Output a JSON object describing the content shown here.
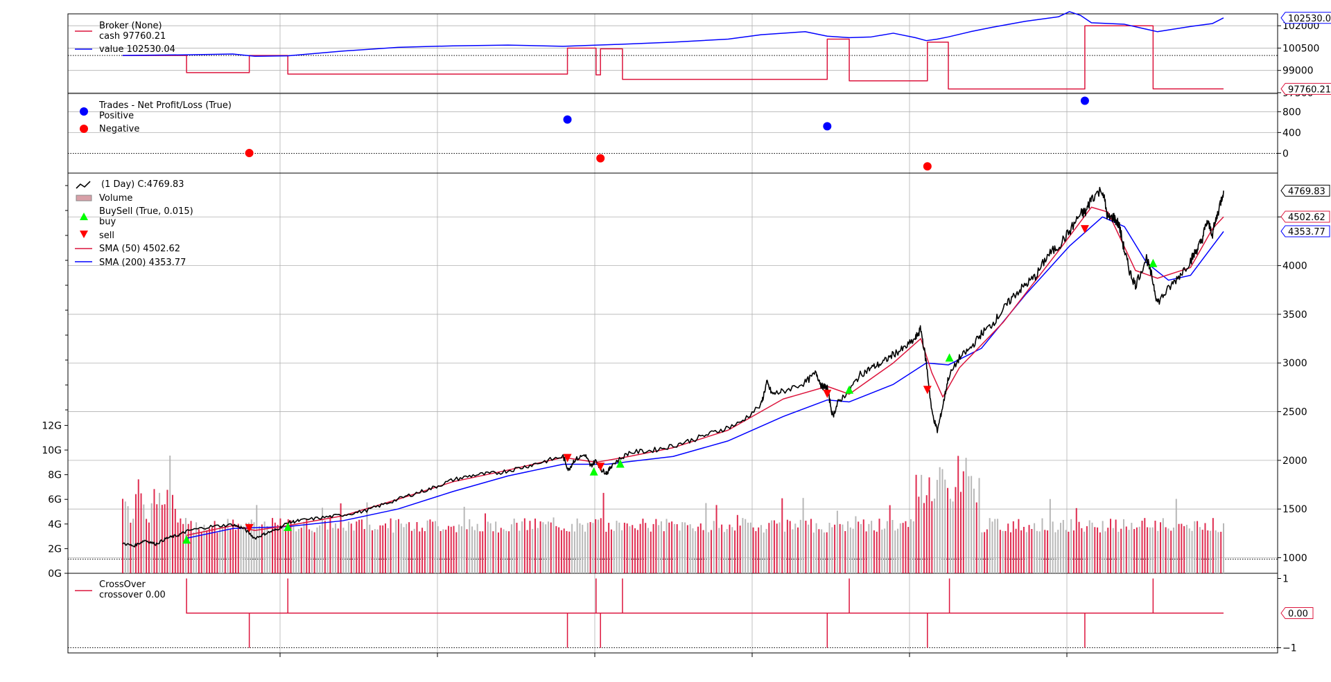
{
  "chart_data": {
    "type": "line",
    "panels": {
      "broker": {
        "legend_title": "Broker (None)",
        "cash_label": "cash 97760.21",
        "value_label": "value 102530.04",
        "y_ticks": [
          "102000",
          "100500",
          "99000",
          "97500"
        ],
        "ylim": [
          97450,
          102800
        ],
        "value_box": "102530.04",
        "cash_box": "97760.21",
        "colors": {
          "value": "#0000ff",
          "cash": "#dc143c"
        },
        "value_series": [
          [
            0.0,
            100000
          ],
          [
            0.06,
            100050
          ],
          [
            0.1,
            100100
          ],
          [
            0.12,
            99950
          ],
          [
            0.15,
            99980
          ],
          [
            0.2,
            100300
          ],
          [
            0.25,
            100550
          ],
          [
            0.3,
            100650
          ],
          [
            0.35,
            100700
          ],
          [
            0.4,
            100620
          ],
          [
            0.45,
            100750
          ],
          [
            0.5,
            100900
          ],
          [
            0.55,
            101100
          ],
          [
            0.58,
            101400
          ],
          [
            0.62,
            101600
          ],
          [
            0.64,
            101300
          ],
          [
            0.66,
            101200
          ],
          [
            0.68,
            101250
          ],
          [
            0.7,
            101500
          ],
          [
            0.72,
            101200
          ],
          [
            0.73,
            101000
          ],
          [
            0.74,
            101100
          ],
          [
            0.75,
            101250
          ],
          [
            0.77,
            101600
          ],
          [
            0.79,
            101900
          ],
          [
            0.82,
            102300
          ],
          [
            0.85,
            102600
          ],
          [
            0.86,
            102950
          ],
          [
            0.87,
            102700
          ],
          [
            0.88,
            102200
          ],
          [
            0.91,
            102100
          ],
          [
            0.94,
            101600
          ],
          [
            0.97,
            101950
          ],
          [
            0.99,
            102150
          ],
          [
            1.0,
            102530
          ]
        ],
        "cash_series": [
          [
            0.0,
            100000
          ],
          [
            0.058,
            100000
          ],
          [
            0.058,
            98850
          ],
          [
            0.115,
            98850
          ],
          [
            0.115,
            100000
          ],
          [
            0.15,
            100000
          ],
          [
            0.15,
            98750
          ],
          [
            0.404,
            98750
          ],
          [
            0.404,
            100500
          ],
          [
            0.43,
            100500
          ],
          [
            0.43,
            98700
          ],
          [
            0.434,
            98700
          ],
          [
            0.434,
            100450
          ],
          [
            0.454,
            100450
          ],
          [
            0.454,
            98400
          ],
          [
            0.64,
            98400
          ],
          [
            0.64,
            101100
          ],
          [
            0.66,
            101100
          ],
          [
            0.66,
            98300
          ],
          [
            0.731,
            98300
          ],
          [
            0.731,
            100900
          ],
          [
            0.75,
            100900
          ],
          [
            0.75,
            97750
          ],
          [
            0.874,
            97750
          ],
          [
            0.874,
            102000
          ],
          [
            0.936,
            102000
          ],
          [
            0.936,
            97760
          ],
          [
            1.0,
            97760
          ]
        ]
      },
      "trades": {
        "legend_title": "Trades - Net Profit/Loss (True)",
        "positive_label": "Positive",
        "negative_label": "Negative",
        "y_ticks": [
          "800",
          "400",
          "0"
        ],
        "ylim": [
          -380,
          1150
        ],
        "colors": {
          "positive": "#0000ff",
          "negative": "#ff0000"
        },
        "positive_points": [
          [
            0.404,
            650
          ],
          [
            0.64,
            520
          ],
          [
            0.874,
            1010
          ]
        ],
        "negative_points": [
          [
            0.115,
            5
          ],
          [
            0.434,
            -95
          ],
          [
            0.731,
            -250
          ]
        ]
      },
      "price": {
        "series_label": "(1 Day) C:4769.83",
        "volume_label": "Volume",
        "buysell_title": "BuySell (True, 0.015)",
        "buy_label": "buy",
        "sell_label": "sell",
        "sma50_label": "SMA (50) 4502.62",
        "sma200_label": "SMA (200) 4353.77",
        "close_box": "4769.83",
        "sma50_box": "4502.62",
        "sma200_box": "4353.77",
        "y_ticks_right": [
          "4500",
          "4000",
          "3500",
          "3000",
          "2500",
          "2000",
          "1500",
          "1000"
        ],
        "y_ticks_left": [
          "12G",
          "10G",
          "8G",
          "6G",
          "4G",
          "2G",
          "0G"
        ],
        "ylim": [
          840,
          4950
        ],
        "volume_max_g": 12.3,
        "colors": {
          "close": "#000000",
          "sma50": "#dc143c",
          "sma200": "#0000ff",
          "buy": "#00ff00",
          "sell": "#ff0000",
          "volume_up": "#b0b0b0",
          "volume_down": "#dc143c"
        },
        "close_series": [
          [
            0.0,
            1150
          ],
          [
            0.01,
            1120
          ],
          [
            0.02,
            1180
          ],
          [
            0.03,
            1140
          ],
          [
            0.04,
            1200
          ],
          [
            0.05,
            1230
          ],
          [
            0.06,
            1280
          ],
          [
            0.08,
            1320
          ],
          [
            0.1,
            1340
          ],
          [
            0.11,
            1300
          ],
          [
            0.12,
            1200
          ],
          [
            0.13,
            1250
          ],
          [
            0.14,
            1290
          ],
          [
            0.15,
            1360
          ],
          [
            0.16,
            1380
          ],
          [
            0.18,
            1410
          ],
          [
            0.2,
            1440
          ],
          [
            0.22,
            1480
          ],
          [
            0.24,
            1560
          ],
          [
            0.26,
            1640
          ],
          [
            0.28,
            1710
          ],
          [
            0.3,
            1800
          ],
          [
            0.32,
            1850
          ],
          [
            0.34,
            1870
          ],
          [
            0.36,
            1920
          ],
          [
            0.38,
            1980
          ],
          [
            0.4,
            2040
          ],
          [
            0.405,
            1900
          ],
          [
            0.41,
            2000
          ],
          [
            0.42,
            2060
          ],
          [
            0.425,
            1940
          ],
          [
            0.43,
            2000
          ],
          [
            0.435,
            1900
          ],
          [
            0.44,
            1870
          ],
          [
            0.445,
            1960
          ],
          [
            0.46,
            2080
          ],
          [
            0.48,
            2100
          ],
          [
            0.5,
            2150
          ],
          [
            0.52,
            2220
          ],
          [
            0.54,
            2300
          ],
          [
            0.56,
            2380
          ],
          [
            0.58,
            2570
          ],
          [
            0.585,
            2800
          ],
          [
            0.59,
            2680
          ],
          [
            0.6,
            2710
          ],
          [
            0.62,
            2800
          ],
          [
            0.63,
            2900
          ],
          [
            0.635,
            2760
          ],
          [
            0.64,
            2750
          ],
          [
            0.645,
            2450
          ],
          [
            0.65,
            2600
          ],
          [
            0.66,
            2720
          ],
          [
            0.67,
            2880
          ],
          [
            0.68,
            2950
          ],
          [
            0.69,
            3000
          ],
          [
            0.7,
            3090
          ],
          [
            0.71,
            3150
          ],
          [
            0.72,
            3250
          ],
          [
            0.725,
            3350
          ],
          [
            0.73,
            3000
          ],
          [
            0.735,
            2500
          ],
          [
            0.74,
            2300
          ],
          [
            0.745,
            2560
          ],
          [
            0.75,
            2850
          ],
          [
            0.76,
            3050
          ],
          [
            0.77,
            3150
          ],
          [
            0.78,
            3300
          ],
          [
            0.79,
            3400
          ],
          [
            0.8,
            3550
          ],
          [
            0.81,
            3700
          ],
          [
            0.82,
            3800
          ],
          [
            0.83,
            3900
          ],
          [
            0.84,
            4100
          ],
          [
            0.85,
            4200
          ],
          [
            0.86,
            4350
          ],
          [
            0.87,
            4530
          ],
          [
            0.875,
            4550
          ],
          [
            0.88,
            4700
          ],
          [
            0.89,
            4780
          ],
          [
            0.895,
            4480
          ],
          [
            0.9,
            4500
          ],
          [
            0.905,
            4420
          ],
          [
            0.91,
            4150
          ],
          [
            0.915,
            3930
          ],
          [
            0.92,
            3800
          ],
          [
            0.93,
            4080
          ],
          [
            0.935,
            3880
          ],
          [
            0.94,
            3620
          ],
          [
            0.95,
            3760
          ],
          [
            0.96,
            3900
          ],
          [
            0.97,
            4050
          ],
          [
            0.975,
            4150
          ],
          [
            0.98,
            4250
          ],
          [
            0.985,
            4450
          ],
          [
            0.99,
            4330
          ],
          [
            0.995,
            4550
          ],
          [
            1.0,
            4770
          ]
        ],
        "sma50_series": [
          [
            0.058,
            1230
          ],
          [
            0.1,
            1330
          ],
          [
            0.12,
            1280
          ],
          [
            0.15,
            1330
          ],
          [
            0.2,
            1430
          ],
          [
            0.25,
            1600
          ],
          [
            0.3,
            1780
          ],
          [
            0.35,
            1900
          ],
          [
            0.4,
            2030
          ],
          [
            0.43,
            1980
          ],
          [
            0.46,
            2040
          ],
          [
            0.5,
            2130
          ],
          [
            0.55,
            2310
          ],
          [
            0.6,
            2630
          ],
          [
            0.64,
            2760
          ],
          [
            0.66,
            2680
          ],
          [
            0.7,
            3000
          ],
          [
            0.725,
            3250
          ],
          [
            0.735,
            2900
          ],
          [
            0.745,
            2650
          ],
          [
            0.76,
            2950
          ],
          [
            0.8,
            3420
          ],
          [
            0.85,
            4150
          ],
          [
            0.88,
            4600
          ],
          [
            0.895,
            4550
          ],
          [
            0.92,
            3950
          ],
          [
            0.94,
            3870
          ],
          [
            0.97,
            3980
          ],
          [
            0.99,
            4380
          ],
          [
            1.0,
            4500
          ]
        ],
        "sma200_series": [
          [
            0.058,
            1200
          ],
          [
            0.1,
            1300
          ],
          [
            0.15,
            1320
          ],
          [
            0.2,
            1380
          ],
          [
            0.25,
            1500
          ],
          [
            0.3,
            1680
          ],
          [
            0.35,
            1840
          ],
          [
            0.4,
            1960
          ],
          [
            0.44,
            1960
          ],
          [
            0.5,
            2040
          ],
          [
            0.55,
            2200
          ],
          [
            0.6,
            2450
          ],
          [
            0.64,
            2620
          ],
          [
            0.66,
            2600
          ],
          [
            0.7,
            2780
          ],
          [
            0.73,
            3000
          ],
          [
            0.75,
            2980
          ],
          [
            0.78,
            3150
          ],
          [
            0.82,
            3700
          ],
          [
            0.86,
            4200
          ],
          [
            0.89,
            4500
          ],
          [
            0.91,
            4400
          ],
          [
            0.93,
            4030
          ],
          [
            0.95,
            3850
          ],
          [
            0.97,
            3900
          ],
          [
            0.99,
            4200
          ],
          [
            1.0,
            4350
          ]
        ],
        "buy_markers": [
          [
            0.058,
            1180
          ],
          [
            0.15,
            1310
          ],
          [
            0.428,
            1880
          ],
          [
            0.452,
            1960
          ],
          [
            0.66,
            2720
          ],
          [
            0.751,
            3050
          ],
          [
            0.936,
            4020
          ]
        ],
        "sell_markers": [
          [
            0.115,
            1310
          ],
          [
            0.404,
            2030
          ],
          [
            0.434,
            1940
          ],
          [
            0.64,
            2690
          ],
          [
            0.731,
            2730
          ],
          [
            0.874,
            4380
          ]
        ]
      },
      "crossover": {
        "legend_title": "CrossOver",
        "value_label": "crossover 0.00",
        "y_ticks": [
          "1",
          "−1"
        ],
        "ylim": [
          -1.15,
          1.15
        ],
        "value_box": "0.00",
        "color": "#dc143c",
        "up_events": [
          0.058,
          0.15,
          0.43,
          0.454,
          0.66,
          0.751,
          0.936
        ],
        "down_events": [
          0.115,
          0.404,
          0.434,
          0.64,
          0.731,
          0.874
        ]
      }
    },
    "x_ticks": [
      "",
      "",
      "",
      "",
      "",
      "",
      ""
    ],
    "grid": true,
    "legend_placement": "top-left"
  }
}
